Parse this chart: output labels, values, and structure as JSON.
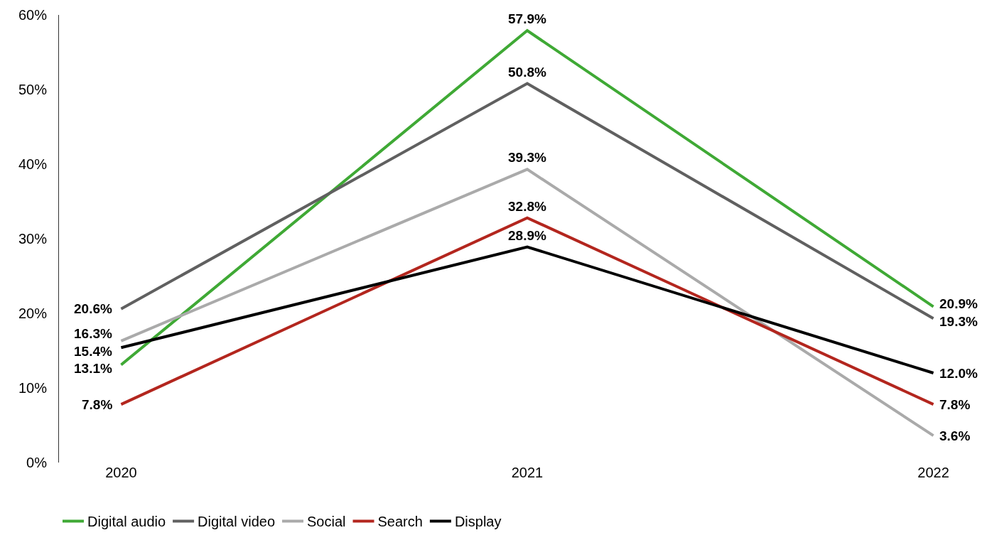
{
  "chart_data": {
    "type": "line",
    "categories": [
      "2020",
      "2021",
      "2022"
    ],
    "series": [
      {
        "name": "Digital audio",
        "color": "#3fa935",
        "values": [
          13.1,
          57.9,
          20.9
        ],
        "value_labels": [
          "13.1%",
          "57.9%",
          "20.9%"
        ]
      },
      {
        "name": "Digital video",
        "color": "#606060",
        "values": [
          20.6,
          50.8,
          19.3
        ],
        "value_labels": [
          "20.6%",
          "50.8%",
          "19.3%"
        ]
      },
      {
        "name": "Social",
        "color": "#aaaaaa",
        "values": [
          16.3,
          39.3,
          3.6
        ],
        "value_labels": [
          "16.3%",
          "39.3%",
          "3.6%"
        ]
      },
      {
        "name": "Search",
        "color": "#b3261e",
        "values": [
          7.8,
          32.8,
          7.8
        ],
        "value_labels": [
          "7.8%",
          "32.8%",
          "7.8%"
        ]
      },
      {
        "name": "Display",
        "color": "#000000",
        "values": [
          15.4,
          28.9,
          12.0
        ],
        "value_labels": [
          "15.4%",
          "28.9%",
          "12.0%"
        ]
      }
    ],
    "ylim": [
      0,
      60
    ],
    "yticks": [
      {
        "value": 0,
        "label": "0%"
      },
      {
        "value": 10,
        "label": "10%"
      },
      {
        "value": 20,
        "label": "20%"
      },
      {
        "value": 30,
        "label": "30%"
      },
      {
        "value": 40,
        "label": "40%"
      },
      {
        "value": 50,
        "label": "50%"
      },
      {
        "value": 60,
        "label": "60%"
      }
    ],
    "legend": "bottom left",
    "marker": "none",
    "line_style": "solid"
  }
}
